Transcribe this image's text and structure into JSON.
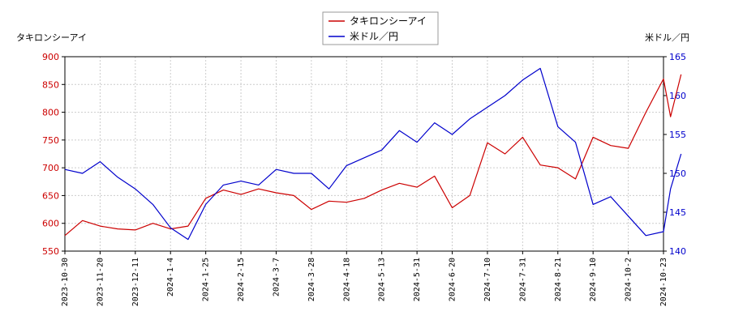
{
  "chart_data": {
    "type": "line",
    "left_axis_label": "タキロンシーアイ",
    "right_axis_label": "米ドル／円",
    "left_ylim": [
      550,
      900
    ],
    "right_ylim": [
      140,
      165
    ],
    "left_ticks": [
      550,
      600,
      650,
      700,
      750,
      800,
      850,
      900
    ],
    "right_ticks": [
      140,
      145,
      150,
      155,
      160,
      165
    ],
    "x_ticks": [
      "2023-10-30",
      "2023-11-20",
      "2023-12-11",
      "2024-1-4",
      "2024-1-25",
      "2024-2-15",
      "2024-3-7",
      "2024-3-28",
      "2024-4-18",
      "2024-5-13",
      "2024-5-31",
      "2024-6-20",
      "2024-7-10",
      "2024-7-31",
      "2024-8-21",
      "2024-9-10",
      "2024-10-2",
      "2024-10-23"
    ],
    "grid": true,
    "legend_position": "top-center",
    "series": [
      {
        "name": "タキロンシーアイ",
        "axis": "left",
        "color": "#cc0000",
        "x": [
          0,
          0.5,
          1,
          1.5,
          2,
          2.5,
          3,
          3.5,
          4,
          4.5,
          5,
          5.5,
          6,
          6.5,
          7,
          7.5,
          8,
          8.5,
          9,
          9.5,
          10,
          10.5,
          11,
          11.5,
          12,
          12.5,
          13,
          13.5,
          14,
          14.5,
          15,
          15.5,
          16,
          16.5,
          17,
          17.2,
          17.5
        ],
        "values": [
          578,
          605,
          595,
          590,
          588,
          600,
          590,
          595,
          645,
          660,
          652,
          662,
          655,
          650,
          625,
          640,
          638,
          645,
          660,
          672,
          665,
          685,
          628,
          650,
          745,
          725,
          755,
          705,
          700,
          680,
          755,
          740,
          735,
          800,
          860,
          792,
          868
        ]
      },
      {
        "name": "米ドル／円",
        "axis": "right",
        "color": "#0000cc",
        "x": [
          0,
          0.5,
          1,
          1.5,
          2,
          2.5,
          3,
          3.5,
          4,
          4.5,
          5,
          5.5,
          6,
          6.5,
          7,
          7.5,
          8,
          8.5,
          9,
          9.5,
          10,
          10.5,
          11,
          11.5,
          12,
          12.5,
          13,
          13.5,
          14,
          14.5,
          15,
          15.5,
          16,
          16.5,
          17,
          17.2,
          17.5
        ],
        "values": [
          150.5,
          150,
          151.5,
          149.5,
          148,
          146,
          143,
          141.5,
          146,
          148.5,
          149,
          148.5,
          150.5,
          150,
          150,
          148,
          151,
          152,
          153,
          155.5,
          154,
          156.5,
          155,
          157,
          158.5,
          160,
          162,
          163.5,
          156,
          154,
          146,
          147,
          144.5,
          142,
          142.5,
          148,
          152.5
        ]
      }
    ]
  }
}
